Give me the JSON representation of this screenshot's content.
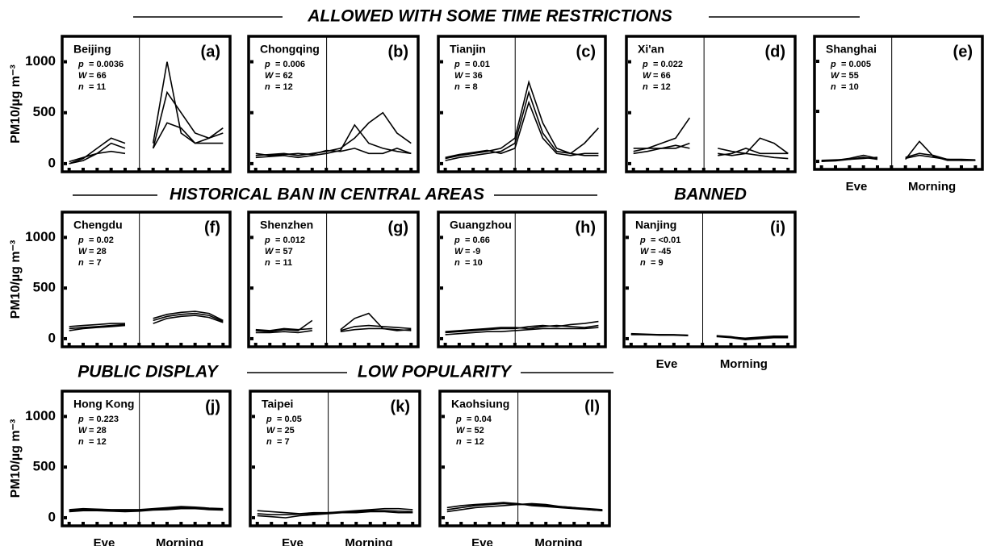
{
  "headers": [
    "ALLOWED WITH SOME TIME RESTRICTIONS",
    "HISTORICAL BAN IN CENTRAL AREAS",
    "BANNED",
    "PUBLIC DISPLAY",
    "LOW POPULARITY"
  ],
  "chart_data": [
    {
      "type": "line",
      "title": "Beijing",
      "panel": "(a)",
      "stats": [
        [
          "p",
          "= 0.0036"
        ],
        [
          "W",
          "= 66"
        ],
        [
          "n",
          "= 11"
        ]
      ],
      "ylabel": "PM10/µg m⁻³",
      "ytick_labels": true,
      "ylim": [
        -80,
        1250
      ],
      "yticks": [
        0,
        500,
        1000
      ],
      "categories": [
        null,
        null,
        null,
        null,
        null,
        null,
        null,
        null,
        null,
        null,
        null,
        null
      ],
      "color": "#000000",
      "series": [
        {
          "values": [
            0,
            50,
            150,
            250,
            200,
            null,
            150,
            700,
            500,
            300,
            250,
            350
          ]
        },
        {
          "values": [
            0,
            30,
            100,
            200,
            150,
            null,
            200,
            1000,
            300,
            200,
            250,
            300
          ]
        },
        {
          "values": [
            20,
            60,
            100,
            120,
            100,
            null,
            150,
            400,
            350,
            200,
            200,
            200
          ]
        }
      ]
    },
    {
      "type": "line",
      "title": "Chongqing",
      "panel": "(b)",
      "stats": [
        [
          "p",
          "= 0.006"
        ],
        [
          "W",
          "= 62"
        ],
        [
          "n",
          "= 12"
        ]
      ],
      "ytick_labels": false,
      "ylim": [
        -80,
        1250
      ],
      "yticks": [
        0,
        500,
        1000
      ],
      "categories": [
        null,
        null,
        null,
        null,
        null,
        null,
        null,
        null,
        null,
        null,
        null,
        null
      ],
      "color": "#000000",
      "series": [
        {
          "values": [
            80,
            90,
            100,
            80,
            100,
            120,
            150,
            250,
            400,
            500,
            300,
            200
          ]
        },
        {
          "values": [
            60,
            70,
            80,
            60,
            80,
            100,
            130,
            380,
            200,
            150,
            120,
            100
          ]
        },
        {
          "values": [
            100,
            80,
            90,
            100,
            90,
            130,
            120,
            150,
            100,
            100,
            150,
            100
          ]
        }
      ]
    },
    {
      "type": "line",
      "title": "Tianjin",
      "panel": "(c)",
      "stats": [
        [
          "p",
          "= 0.01"
        ],
        [
          "W",
          "= 36"
        ],
        [
          "n",
          "= 8"
        ]
      ],
      "ytick_labels": false,
      "ylim": [
        -80,
        1250
      ],
      "yticks": [
        0,
        500,
        1000
      ],
      "categories": [
        null,
        null,
        null,
        null,
        null,
        null,
        null,
        null,
        null,
        null,
        null,
        null
      ],
      "color": "#000000",
      "series": [
        {
          "values": [
            50,
            80,
            100,
            120,
            150,
            250,
            800,
            400,
            150,
            100,
            80,
            80
          ]
        },
        {
          "values": [
            30,
            60,
            80,
            100,
            120,
            200,
            700,
            300,
            120,
            100,
            200,
            350
          ]
        },
        {
          "values": [
            60,
            90,
            110,
            130,
            100,
            150,
            600,
            250,
            100,
            80,
            100,
            100
          ]
        }
      ]
    },
    {
      "type": "line",
      "title": "Xi'an",
      "panel": "(d)",
      "stats": [
        [
          "p",
          "= 0.022"
        ],
        [
          "W",
          "= 66"
        ],
        [
          "n",
          "= 12"
        ]
      ],
      "ytick_labels": false,
      "ylim": [
        -80,
        1250
      ],
      "yticks": [
        0,
        500,
        1000
      ],
      "categories": [
        null,
        null,
        null,
        null,
        null,
        null,
        null,
        null,
        null,
        null,
        null,
        null
      ],
      "color": "#000000",
      "series": [
        {
          "values": [
            150,
            150,
            200,
            250,
            450,
            null,
            150,
            120,
            100,
            250,
            200,
            100
          ]
        },
        {
          "values": [
            100,
            120,
            150,
            150,
            200,
            null,
            100,
            80,
            100,
            80,
            60,
            50
          ]
        },
        {
          "values": [
            120,
            150,
            150,
            180,
            150,
            null,
            80,
            100,
            150,
            100,
            100,
            100
          ]
        }
      ]
    },
    {
      "type": "line",
      "title": "Shanghai",
      "panel": "(e)",
      "stats": [
        [
          "p",
          "= 0.005"
        ],
        [
          "W",
          "= 55"
        ],
        [
          "n",
          "= 10"
        ]
      ],
      "ytick_labels": false,
      "xlabels": [
        "Eve",
        "Morning"
      ],
      "ylim": [
        -80,
        1250
      ],
      "yticks": [
        0,
        500,
        1000
      ],
      "categories": [
        null,
        null,
        null,
        null,
        null,
        null,
        null,
        null,
        null,
        null,
        null,
        null
      ],
      "color": "#000000",
      "series": [
        {
          "values": [
            0,
            10,
            30,
            60,
            30,
            null,
            20,
            200,
            50,
            10,
            10,
            10
          ]
        },
        {
          "values": [
            0,
            5,
            20,
            40,
            20,
            null,
            40,
            80,
            60,
            20,
            10,
            10
          ]
        },
        {
          "values": [
            10,
            15,
            20,
            30,
            40,
            null,
            30,
            60,
            40,
            20,
            20,
            15
          ]
        }
      ]
    },
    {
      "type": "line",
      "title": "Chengdu",
      "panel": "(f)",
      "stats": [
        [
          "p",
          "= 0.02"
        ],
        [
          "W",
          "= 28"
        ],
        [
          "n",
          "= 7"
        ]
      ],
      "ylabel": "PM10/µg m⁻³",
      "ytick_labels": true,
      "ylim": [
        -80,
        1250
      ],
      "yticks": [
        0,
        500,
        1000
      ],
      "categories": [
        null,
        null,
        null,
        null,
        null,
        null,
        null,
        null,
        null,
        null,
        null,
        null
      ],
      "color": "#000000",
      "series": [
        {
          "values": [
            100,
            110,
            120,
            130,
            140,
            null,
            180,
            220,
            240,
            250,
            230,
            170
          ]
        },
        {
          "values": [
            80,
            100,
            110,
            120,
            130,
            null,
            150,
            200,
            220,
            230,
            210,
            160
          ]
        },
        {
          "values": [
            120,
            130,
            140,
            150,
            150,
            null,
            200,
            240,
            260,
            270,
            250,
            180
          ]
        }
      ]
    },
    {
      "type": "line",
      "title": "Shenzhen",
      "panel": "(g)",
      "stats": [
        [
          "p",
          "= 0.012"
        ],
        [
          "W",
          "= 57"
        ],
        [
          "n",
          "= 11"
        ]
      ],
      "ytick_labels": false,
      "ylim": [
        -80,
        1250
      ],
      "yticks": [
        0,
        500,
        1000
      ],
      "categories": [
        null,
        null,
        null,
        null,
        null,
        null,
        null,
        null,
        null,
        null,
        null,
        null
      ],
      "color": "#000000",
      "series": [
        {
          "values": [
            80,
            70,
            90,
            80,
            180,
            null,
            90,
            200,
            250,
            100,
            80,
            90
          ]
        },
        {
          "values": [
            60,
            60,
            70,
            60,
            80,
            null,
            70,
            90,
            100,
            100,
            90,
            80
          ]
        },
        {
          "values": [
            90,
            80,
            100,
            90,
            100,
            null,
            80,
            120,
            130,
            120,
            110,
            100
          ]
        }
      ]
    },
    {
      "type": "line",
      "title": "Guangzhou",
      "panel": "(h)",
      "stats": [
        [
          "p",
          "= 0.66"
        ],
        [
          "W",
          "= -9"
        ],
        [
          "n",
          "= 10"
        ]
      ],
      "ytick_labels": false,
      "ylim": [
        -80,
        1250
      ],
      "yticks": [
        0,
        500,
        1000
      ],
      "categories": [
        null,
        null,
        null,
        null,
        null,
        null,
        null,
        null,
        null,
        null,
        null,
        null
      ],
      "color": "#000000",
      "series": [
        {
          "values": [
            60,
            70,
            80,
            90,
            100,
            100,
            120,
            130,
            120,
            140,
            150,
            170
          ]
        },
        {
          "values": [
            40,
            50,
            60,
            70,
            70,
            80,
            90,
            100,
            100,
            100,
            100,
            110
          ]
        },
        {
          "values": [
            70,
            80,
            90,
            100,
            110,
            110,
            100,
            120,
            130,
            120,
            110,
            130
          ]
        }
      ]
    },
    {
      "type": "line",
      "title": "Nanjing",
      "panel": "(i)",
      "stats": [
        [
          "p",
          "= <0.01"
        ],
        [
          "W",
          "= -45"
        ],
        [
          "n",
          "= 9"
        ]
      ],
      "ytick_labels": false,
      "xlabels": [
        "Eve",
        "Morning"
      ],
      "ylim": [
        -80,
        1250
      ],
      "yticks": [
        0,
        500,
        1000
      ],
      "categories": [
        null,
        null,
        null,
        null,
        null,
        null,
        null,
        null,
        null,
        null,
        null,
        null
      ],
      "color": "#000000",
      "series": [
        {
          "values": [
            50,
            45,
            40,
            40,
            35,
            null,
            30,
            20,
            0,
            10,
            20,
            20
          ]
        },
        {
          "values": [
            40,
            40,
            35,
            35,
            30,
            null,
            20,
            10,
            -10,
            0,
            10,
            10
          ]
        },
        {
          "values": [
            45,
            40,
            40,
            38,
            32,
            null,
            25,
            15,
            5,
            15,
            25,
            25
          ]
        }
      ]
    },
    {
      "type": "line",
      "title": "Hong Kong",
      "panel": "(j)",
      "stats": [
        [
          "p",
          "= 0.223"
        ],
        [
          "W",
          "= 28"
        ],
        [
          "n",
          "= 12"
        ]
      ],
      "ylabel": "PM10/µg m⁻³",
      "ytick_labels": true,
      "xlabels": [
        "Eve",
        "Morning"
      ],
      "ylim": [
        -80,
        1250
      ],
      "yticks": [
        0,
        500,
        1000
      ],
      "categories": [
        null,
        null,
        null,
        null,
        null,
        null,
        null,
        null,
        null,
        null,
        null,
        null
      ],
      "color": "#000000",
      "series": [
        {
          "values": [
            70,
            80,
            80,
            75,
            70,
            70,
            80,
            90,
            100,
            100,
            90,
            80
          ]
        },
        {
          "values": [
            60,
            70,
            70,
            65,
            60,
            65,
            75,
            80,
            90,
            90,
            80,
            75
          ]
        },
        {
          "values": [
            80,
            90,
            85,
            80,
            80,
            80,
            90,
            100,
            110,
            105,
            95,
            90
          ]
        }
      ]
    },
    {
      "type": "line",
      "title": "Taipei",
      "panel": "(k)",
      "stats": [
        [
          "p",
          "= 0.05"
        ],
        [
          "W",
          "= 25"
        ],
        [
          "n",
          "= 7"
        ]
      ],
      "ytick_labels": false,
      "xlabels": [
        "Eve",
        "Morning"
      ],
      "ylim": [
        -80,
        1250
      ],
      "yticks": [
        0,
        500,
        1000
      ],
      "categories": [
        null,
        null,
        null,
        null,
        null,
        null,
        null,
        null,
        null,
        null,
        null,
        null
      ],
      "color": "#000000",
      "series": [
        {
          "values": [
            70,
            60,
            50,
            40,
            50,
            50,
            60,
            70,
            80,
            90,
            90,
            80
          ]
        },
        {
          "values": [
            40,
            30,
            30,
            35,
            40,
            50,
            55,
            60,
            70,
            70,
            65,
            60
          ]
        },
        {
          "values": [
            20,
            10,
            0,
            20,
            30,
            40,
            50,
            50,
            60,
            60,
            50,
            50
          ]
        }
      ]
    },
    {
      "type": "line",
      "title": "Kaohsiung",
      "panel": "(l)",
      "stats": [
        [
          "p",
          "= 0.04"
        ],
        [
          "W",
          "= 52"
        ],
        [
          "n",
          "= 12"
        ]
      ],
      "ytick_labels": false,
      "xlabels": [
        "Eve",
        "Morning"
      ],
      "ylim": [
        -80,
        1250
      ],
      "yticks": [
        0,
        500,
        1000
      ],
      "categories": [
        null,
        null,
        null,
        null,
        null,
        null,
        null,
        null,
        null,
        null,
        null,
        null
      ],
      "color": "#000000",
      "series": [
        {
          "values": [
            80,
            100,
            120,
            130,
            140,
            130,
            130,
            120,
            110,
            100,
            90,
            80
          ]
        },
        {
          "values": [
            100,
            120,
            130,
            140,
            150,
            140,
            120,
            110,
            100,
            90,
            80,
            70
          ]
        },
        {
          "values": [
            60,
            80,
            100,
            110,
            120,
            130,
            140,
            130,
            110,
            100,
            80,
            70
          ]
        }
      ]
    }
  ]
}
